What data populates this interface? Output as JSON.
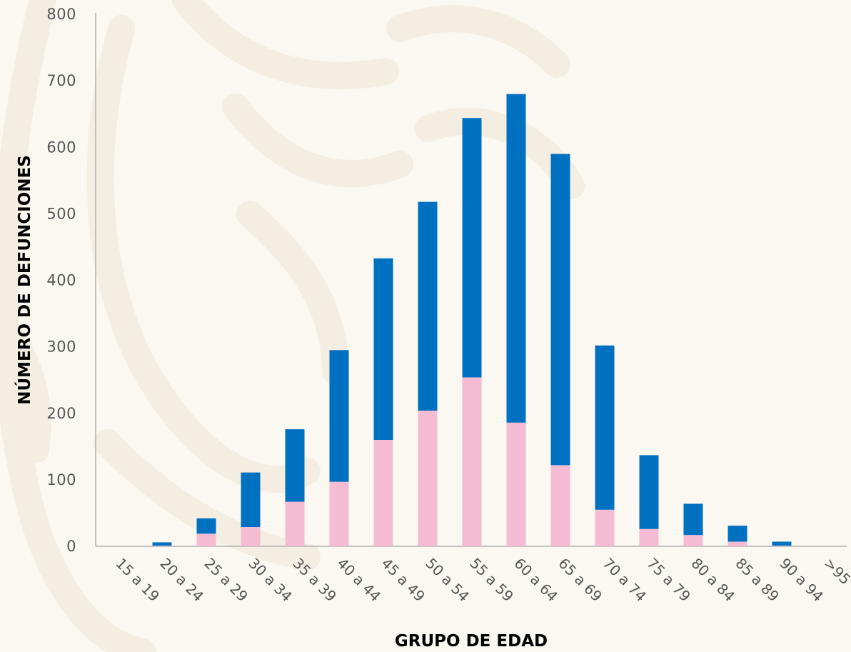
{
  "chart_data": {
    "type": "bar",
    "stacked": true,
    "title": "",
    "xlabel": "GRUPO DE EDAD",
    "ylabel": "NÚMERO DE DEFUNCIONES",
    "ylim": [
      0,
      800
    ],
    "yticks": [
      0,
      100,
      200,
      300,
      400,
      500,
      600,
      700,
      800
    ],
    "grid": false,
    "legend": "none",
    "categories": [
      "15 a 19",
      "20 a 24",
      "25 a 29",
      "30 a 34",
      "35 a 39",
      "40 a 44",
      "45 a 49",
      "50 a 54",
      "55 a 59",
      "60 a 64",
      "65 a 69",
      "70 a 74",
      "75 a 79",
      "80 a 84",
      "85 a 89",
      "90 a 94",
      ">95"
    ],
    "series": [
      {
        "color": "#f4bbd3",
        "values": [
          0,
          1,
          19,
          29,
          67,
          97,
          160,
          204,
          254,
          186,
          122,
          55,
          26,
          17,
          7,
          1,
          0
        ]
      },
      {
        "color": "#0070c0",
        "values": [
          0,
          5,
          23,
          82,
          109,
          198,
          273,
          314,
          390,
          494,
          468,
          247,
          111,
          47,
          24,
          6,
          0
        ]
      }
    ]
  }
}
